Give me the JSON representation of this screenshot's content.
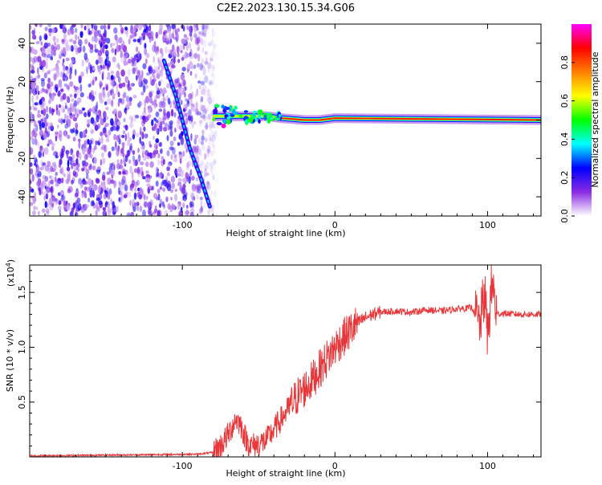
{
  "title": "C2E2.2023.130.15.34.G06",
  "chart_data": [
    {
      "type": "heatmap",
      "xlabel": "Height of straight line (km)",
      "ylabel": "Frequency (Hz)",
      "xlim": [
        -200,
        135
      ],
      "ylim": [
        -50,
        50
      ],
      "x_ticks": [
        -100,
        0,
        100
      ],
      "y_ticks": [
        -40,
        -20,
        0,
        20,
        40
      ],
      "colorbar": {
        "label": "Normalized spectral amplitude",
        "range": [
          0,
          1
        ],
        "ticks": [
          0.0,
          0.2,
          0.4,
          0.6,
          0.8
        ],
        "tick_labels": [
          "0.0",
          "0.2",
          "0.4",
          "0.6",
          "0.8"
        ],
        "colors": [
          "#ffffff",
          "#8a2be2",
          "#0000ff",
          "#00ffff",
          "#00ff00",
          "#ffff00",
          "#ff8000",
          "#ff0000",
          "#ff00ff"
        ]
      },
      "features": [
        {
          "name": "noise",
          "x_range": [
            -200,
            -77
          ],
          "y_range": [
            -50,
            50
          ]
        },
        {
          "name": "diagonal-trace",
          "points": [
            [
              -112,
              31
            ],
            [
              -104,
              12
            ],
            [
              -95,
              -15
            ],
            [
              -88,
              -30
            ],
            [
              -82,
              -45
            ]
          ]
        },
        {
          "name": "horizontal-trace",
          "points": [
            [
              -80,
              2
            ],
            [
              -60,
              2
            ],
            [
              -45,
              2
            ],
            [
              -35,
              1
            ],
            [
              -20,
              0
            ],
            [
              -10,
              0
            ],
            [
              0,
              1
            ],
            [
              135,
              0
            ]
          ]
        }
      ]
    },
    {
      "type": "line",
      "xlabel": "Height of straight line (km)",
      "ylabel": "SNR (10 * v/v)",
      "y_multiplier_label": "(x10",
      "y_multiplier_exponent": "4",
      "y_multiplier_close": ")",
      "xlim": [
        -200,
        135
      ],
      "ylim": [
        0,
        1.75
      ],
      "x_ticks": [
        -100,
        0,
        100
      ],
      "y_ticks": [
        0.5,
        1.0,
        1.5
      ],
      "y_tick_labels": [
        "0.5",
        "1.0",
        "1.5"
      ],
      "series": [
        {
          "color": "#e8373a",
          "x": [
            -200,
            -160,
            -120,
            -90,
            -80,
            -75,
            -70,
            -65,
            -62,
            -58,
            -55,
            -50,
            -45,
            -40,
            -35,
            -30,
            -25,
            -20,
            -15,
            -10,
            -5,
            0,
            5,
            10,
            15,
            20,
            25,
            30,
            40,
            50,
            60,
            70,
            80,
            90,
            95,
            98,
            100,
            103,
            106,
            110,
            120,
            135
          ],
          "y": [
            0.01,
            0.015,
            0.02,
            0.025,
            0.04,
            0.1,
            0.2,
            0.35,
            0.3,
            0.15,
            0.1,
            0.12,
            0.15,
            0.25,
            0.35,
            0.45,
            0.55,
            0.62,
            0.7,
            0.8,
            0.9,
            1.0,
            1.08,
            1.15,
            1.22,
            1.27,
            1.3,
            1.32,
            1.33,
            1.32,
            1.34,
            1.33,
            1.35,
            1.36,
            1.2,
            1.5,
            1.1,
            1.6,
            1.3,
            1.31,
            1.3,
            1.3
          ]
        }
      ]
    }
  ]
}
